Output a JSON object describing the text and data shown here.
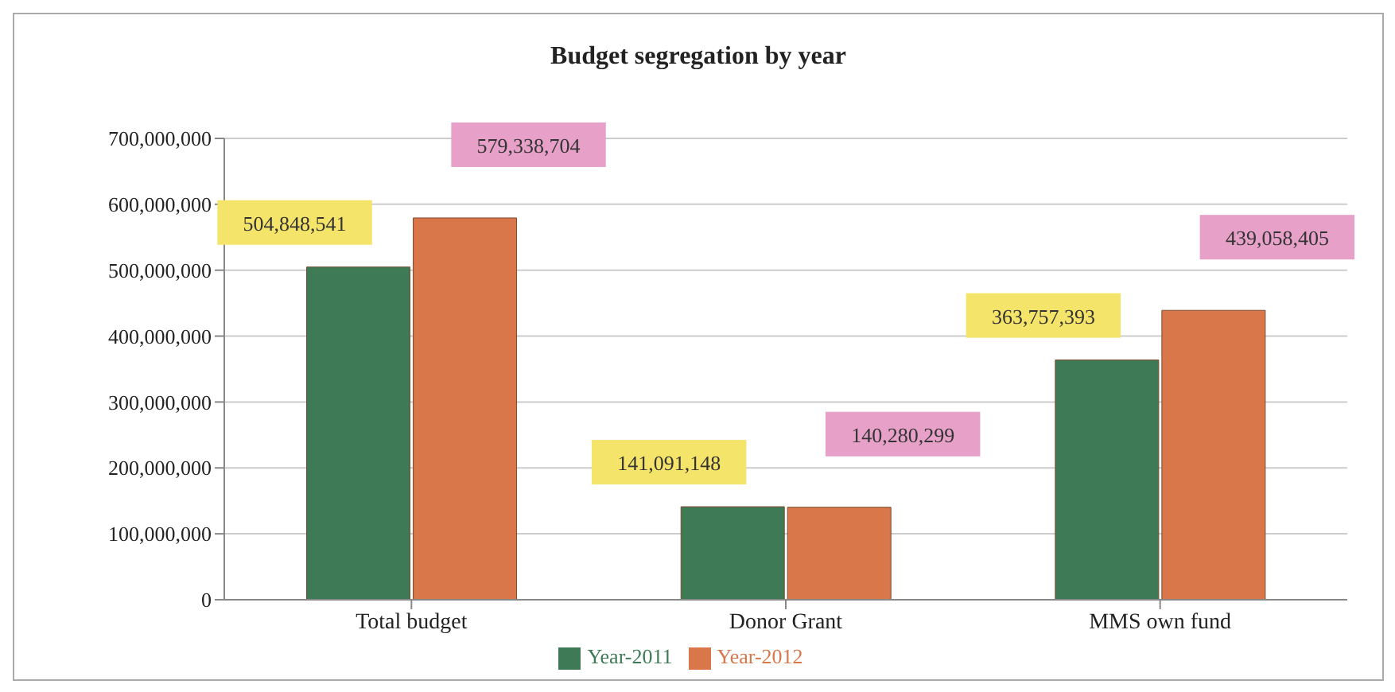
{
  "chart_data": {
    "type": "bar",
    "title": "Budget segregation by year",
    "categories": [
      "Total budget",
      "Donor Grant",
      "MMS own fund"
    ],
    "series": [
      {
        "name": "Year-2011",
        "color": "#3d7a55",
        "values": [
          504848541,
          141091148,
          363757393
        ],
        "value_labels": [
          "504,848,541",
          "141,091,148",
          "363,757,393"
        ]
      },
      {
        "name": "Year-2012",
        "color": "#d9774a",
        "values": [
          579338704,
          140280299,
          439058405
        ],
        "value_labels": [
          "579,338,704",
          "140,280,299",
          "439,058,405"
        ]
      }
    ],
    "ylim": [
      0,
      700000000
    ],
    "yticks": [
      0,
      {
        "value": 100000000,
        "label": "100,000,000"
      },
      {
        "value": 200000000,
        "label": "200,000,000"
      },
      {
        "value": 300000000,
        "label": "300,000,000"
      },
      {
        "value": 400000000,
        "label": "400,000,000"
      },
      {
        "value": 500000000,
        "label": "500,000,000"
      },
      {
        "value": 600000000,
        "label": "600,000,000"
      },
      {
        "value": 700000000,
        "label": "700,000,000"
      }
    ],
    "grid": "y",
    "legend": "bottom"
  }
}
